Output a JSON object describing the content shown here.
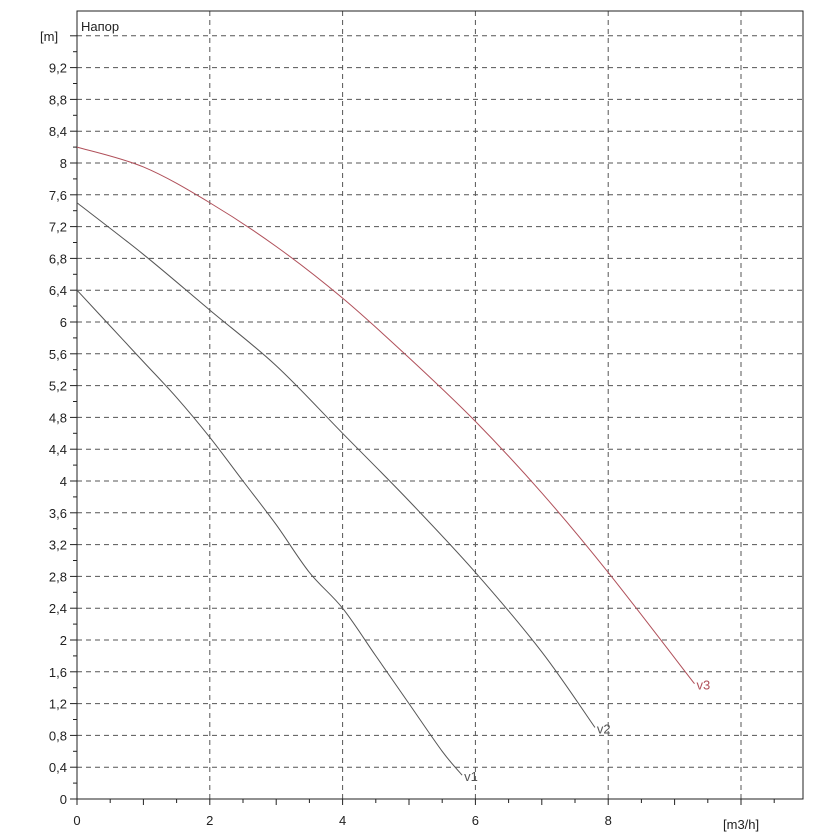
{
  "chart_data": {
    "type": "line",
    "title": "Напор",
    "xlabel": "[m3/h]",
    "ylabel": "[m]",
    "xlim": [
      0,
      11
    ],
    "ylim": [
      0,
      9.6
    ],
    "x_ticks": [
      0,
      2,
      4,
      6,
      8
    ],
    "x_tick_labels": [
      "0",
      "2",
      "4",
      "6",
      "8"
    ],
    "y_ticks": [
      0,
      0.4,
      0.8,
      1.2,
      1.6,
      2,
      2.4,
      2.8,
      3.2,
      3.6,
      4,
      4.4,
      4.8,
      5.2,
      5.6,
      6,
      6.4,
      6.8,
      7.2,
      7.6,
      8,
      8.4,
      8.8,
      9.2
    ],
    "y_tick_labels": [
      "0",
      "0,4",
      "0,8",
      "1,2",
      "1,6",
      "2",
      "2,4",
      "2,8",
      "3,2",
      "3,6",
      "4",
      "4,4",
      "4,8",
      "5,2",
      "5,6",
      "6",
      "6,4",
      "6,8",
      "7,2",
      "7,6",
      "8",
      "8,4",
      "8,8",
      "9,2"
    ],
    "grid": true,
    "series": [
      {
        "name": "v1",
        "color": "#555555",
        "x": [
          0,
          0.5,
          1,
          1.5,
          2,
          2.5,
          3,
          3.5,
          4,
          4.5,
          5,
          5.5,
          5.8
        ],
        "y": [
          6.4,
          5.95,
          5.5,
          5.05,
          4.55,
          4.0,
          3.45,
          2.85,
          2.4,
          1.8,
          1.2,
          0.6,
          0.3
        ]
      },
      {
        "name": "v2",
        "color": "#555555",
        "x": [
          0,
          1,
          2,
          3,
          4,
          5,
          6,
          7,
          7.8
        ],
        "y": [
          7.5,
          6.85,
          6.15,
          5.45,
          4.6,
          3.75,
          2.85,
          1.85,
          0.9
        ]
      },
      {
        "name": "v3",
        "color": "#b0505a",
        "x": [
          0,
          1,
          2,
          3,
          4,
          5,
          6,
          7,
          8,
          9.3
        ],
        "y": [
          8.2,
          7.95,
          7.5,
          6.95,
          6.3,
          5.55,
          4.75,
          3.85,
          2.85,
          1.45
        ]
      }
    ]
  }
}
